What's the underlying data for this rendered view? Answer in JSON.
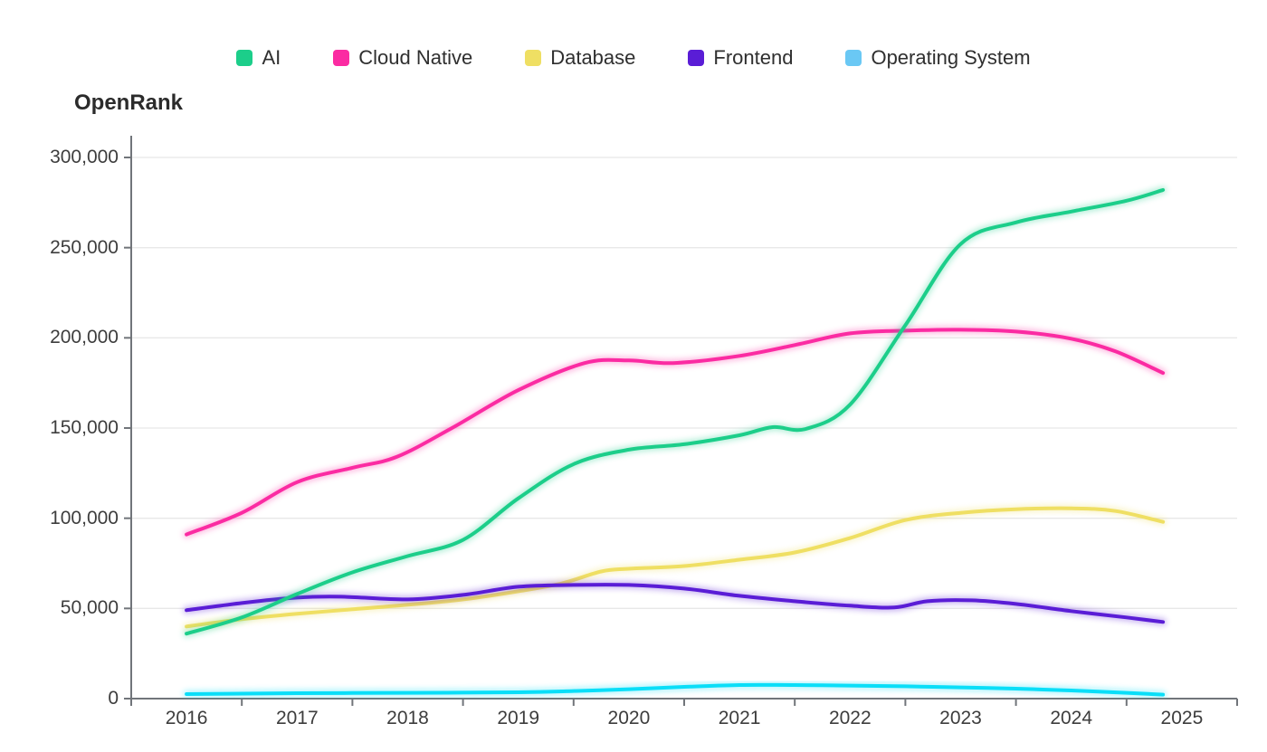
{
  "header": {
    "title": "OpenRank"
  },
  "legend": {
    "items": [
      {
        "label": "AI",
        "color": "#1CCE8A"
      },
      {
        "label": "Cloud Native",
        "color": "#FB2BA2"
      },
      {
        "label": "Database",
        "color": "#EFDF63"
      },
      {
        "label": "Frontend",
        "color": "#5A1DD6"
      },
      {
        "label": "Operating System",
        "color": "#6AC8F4"
      }
    ]
  },
  "chart_data": {
    "type": "line",
    "title": "OpenRank",
    "xlabel": "",
    "ylabel": "OpenRank",
    "x_ticks": [
      "2016",
      "2017",
      "2018",
      "2019",
      "2020",
      "2021",
      "2022",
      "2023",
      "2024",
      "2025"
    ],
    "y_ticks": [
      0,
      50000,
      100000,
      150000,
      200000,
      250000,
      300000
    ],
    "ylim": [
      0,
      300000
    ],
    "grid": true,
    "smooth": true,
    "legend_position": "top",
    "series": [
      {
        "name": "Cloud Native",
        "color": "#FB2BA2",
        "points": [
          [
            2016.0,
            91000
          ],
          [
            2016.5,
            103000
          ],
          [
            2017.0,
            120000
          ],
          [
            2017.5,
            128000
          ],
          [
            2017.9,
            134000
          ],
          [
            2018.4,
            150000
          ],
          [
            2019.0,
            171000
          ],
          [
            2019.6,
            186000
          ],
          [
            2020.0,
            187500
          ],
          [
            2020.4,
            186000
          ],
          [
            2021.0,
            190000
          ],
          [
            2021.5,
            196000
          ],
          [
            2022.0,
            202500
          ],
          [
            2022.5,
            204000
          ],
          [
            2023.0,
            204500
          ],
          [
            2023.5,
            203500
          ],
          [
            2024.0,
            199500
          ],
          [
            2024.4,
            192500
          ],
          [
            2024.83,
            180500
          ]
        ]
      },
      {
        "name": "Database",
        "color": "#EFDF63",
        "points": [
          [
            2016.0,
            40000
          ],
          [
            2016.5,
            44000
          ],
          [
            2017.0,
            47000
          ],
          [
            2017.5,
            49500
          ],
          [
            2018.0,
            52000
          ],
          [
            2018.5,
            55000
          ],
          [
            2019.0,
            59500
          ],
          [
            2019.4,
            64000
          ],
          [
            2019.75,
            70500
          ],
          [
            2020.0,
            72000
          ],
          [
            2020.5,
            73500
          ],
          [
            2021.0,
            77000
          ],
          [
            2021.5,
            81000
          ],
          [
            2022.0,
            89000
          ],
          [
            2022.5,
            99000
          ],
          [
            2023.0,
            103000
          ],
          [
            2023.5,
            105000
          ],
          [
            2024.0,
            105500
          ],
          [
            2024.4,
            104000
          ],
          [
            2024.83,
            98000
          ]
        ]
      },
      {
        "name": "Frontend",
        "color": "#5A1DD6",
        "points": [
          [
            2016.0,
            49000
          ],
          [
            2016.5,
            53000
          ],
          [
            2017.0,
            56000
          ],
          [
            2017.4,
            56500
          ],
          [
            2018.0,
            55000
          ],
          [
            2018.5,
            57500
          ],
          [
            2019.0,
            62000
          ],
          [
            2019.5,
            63000
          ],
          [
            2020.0,
            63000
          ],
          [
            2020.5,
            61000
          ],
          [
            2021.0,
            57000
          ],
          [
            2021.5,
            54000
          ],
          [
            2022.0,
            51500
          ],
          [
            2022.4,
            50500
          ],
          [
            2022.7,
            54000
          ],
          [
            2023.1,
            54500
          ],
          [
            2023.5,
            52500
          ],
          [
            2024.0,
            48500
          ],
          [
            2024.5,
            45000
          ],
          [
            2024.83,
            42500
          ]
        ]
      },
      {
        "name": "Operating System",
        "color": "#6AC8F4",
        "line_color": "#0ADEF8",
        "points": [
          [
            2016.0,
            2500
          ],
          [
            2017.0,
            3000
          ],
          [
            2018.0,
            3200
          ],
          [
            2019.0,
            3500
          ],
          [
            2019.5,
            4200
          ],
          [
            2020.0,
            5200
          ],
          [
            2020.5,
            6500
          ],
          [
            2021.0,
            7500
          ],
          [
            2021.5,
            7500
          ],
          [
            2022.0,
            7200
          ],
          [
            2022.5,
            6800
          ],
          [
            2023.0,
            6200
          ],
          [
            2023.5,
            5500
          ],
          [
            2024.0,
            4500
          ],
          [
            2024.5,
            3200
          ],
          [
            2024.83,
            2200
          ]
        ]
      },
      {
        "name": "AI",
        "color": "#1CCE8A",
        "points": [
          [
            2016.0,
            36000
          ],
          [
            2016.5,
            45000
          ],
          [
            2017.0,
            58000
          ],
          [
            2017.5,
            70000
          ],
          [
            2018.0,
            79000
          ],
          [
            2018.5,
            88000
          ],
          [
            2019.0,
            111000
          ],
          [
            2019.5,
            130000
          ],
          [
            2020.0,
            138000
          ],
          [
            2020.5,
            141000
          ],
          [
            2021.0,
            146000
          ],
          [
            2021.3,
            150500
          ],
          [
            2021.6,
            149500
          ],
          [
            2022.0,
            163000
          ],
          [
            2022.5,
            207000
          ],
          [
            2023.0,
            252000
          ],
          [
            2023.5,
            264000
          ],
          [
            2024.0,
            270000
          ],
          [
            2024.5,
            276000
          ],
          [
            2024.83,
            282000
          ]
        ]
      }
    ],
    "colors": {
      "grid": "#E8E8E8",
      "axis": "#71757A",
      "tick_text": "#3D3D3D"
    }
  }
}
